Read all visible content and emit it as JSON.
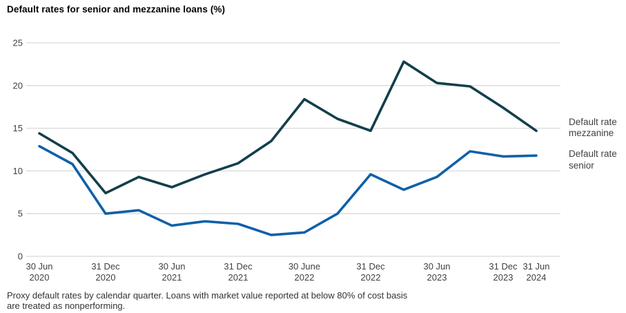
{
  "title": "Default rates for senior and mezzanine loans (%)",
  "footnote": "Proxy default rates by calendar quarter. Loans with market value reported at below 80% of cost basis are treated as nonperforming.",
  "colors": {
    "mezzanine_line": "#133F4B",
    "senior_line": "#0F60A8",
    "gridline": "#D9D9D9",
    "axis_text": "#404040",
    "title_text": "#000000",
    "footnote_text": "#333333",
    "background": "#FFFFFF"
  },
  "legend": {
    "position": "right",
    "items": [
      {
        "label": "Default rate mezzanine",
        "series": "mezzanine"
      },
      {
        "label": "Default rate senior",
        "series": "senior"
      }
    ]
  },
  "chart_data": {
    "type": "line",
    "title": "Default rates for senior and mezzanine loans (%)",
    "xlabel": "",
    "ylabel": "",
    "ylim": [
      0,
      25
    ],
    "yticks": [
      0,
      5,
      10,
      15,
      20,
      25
    ],
    "grid": "horizontal",
    "legend_position": "right",
    "x": [
      "30 Jun 2020",
      "30 Sep 2020",
      "31 Dec 2020",
      "31 Mar 2021",
      "30 Jun 2021",
      "30 Sep 2021",
      "31 Dec 2021",
      "31 Mar 2022",
      "30 Jun 2022",
      "30 Sep 2022",
      "31 Dec 2022",
      "31 Mar 2023",
      "30 Jun 2023",
      "30 Sep 2023",
      "31 Dec 2023",
      "31 Jun 2024"
    ],
    "x_tick_indices": [
      0,
      2,
      4,
      6,
      8,
      10,
      12,
      14,
      15
    ],
    "x_tick_labels": [
      [
        "30 Jun",
        "2020"
      ],
      [
        "31 Dec",
        "2020"
      ],
      [
        "30 Jun",
        "2021"
      ],
      [
        "31 Dec",
        "2021"
      ],
      [
        "30 June",
        "2022"
      ],
      [
        "31 Dec",
        "2022"
      ],
      [
        "30 Jun",
        "2023"
      ],
      [
        "31 Dec",
        "2023"
      ],
      [
        "31 Jun",
        "2024"
      ]
    ],
    "series": [
      {
        "name": "Default rate mezzanine",
        "key": "mezzanine",
        "values": [
          14.4,
          12.1,
          7.4,
          9.3,
          8.1,
          9.6,
          10.9,
          13.5,
          18.4,
          16.1,
          14.7,
          22.8,
          20.3,
          19.9,
          17.4,
          14.7
        ]
      },
      {
        "name": "Default rate senior",
        "key": "senior",
        "values": [
          12.9,
          10.8,
          5.0,
          5.4,
          3.6,
          4.1,
          3.8,
          2.5,
          2.8,
          5.0,
          9.6,
          7.8,
          9.3,
          12.3,
          11.7,
          11.8
        ]
      }
    ]
  }
}
